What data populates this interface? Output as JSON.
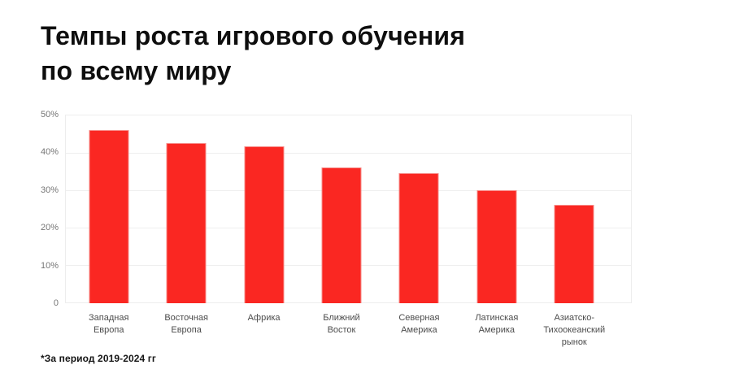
{
  "page": {
    "background": "#ffffff"
  },
  "header": {
    "title_line1": "Темпы роста игрового обучения",
    "title_line2": "по всему миру"
  },
  "chart": {
    "bar_color": "#FA2722",
    "grid_color": "#efefef",
    "axis_tick_color": "#767676",
    "category_label_color": "#4c4c4c"
  },
  "chart_data": {
    "type": "bar",
    "title": "Темпы роста игрового обучения по всему миру",
    "categories": [
      "Западная Европа",
      "Восточная Европа",
      "Африка",
      "Ближний Восток",
      "Северная Америка",
      "Латинская Америка",
      "Азиатско-Тихоокеанский рынок"
    ],
    "category_lines": [
      [
        "Западная",
        "Европа"
      ],
      [
        "Восточная",
        "Европа"
      ],
      [
        "Африка"
      ],
      [
        "Ближний",
        "Восток"
      ],
      [
        "Северная",
        "Америка"
      ],
      [
        "Латинская",
        "Америка"
      ],
      [
        "Азиатско-",
        "Тихоокеанский",
        "рынок"
      ]
    ],
    "values": [
      46,
      42.5,
      41.5,
      36,
      34.5,
      30,
      26
    ],
    "unit": "%",
    "xlabel": "",
    "ylabel": "",
    "ylim": [
      0,
      50
    ],
    "ytick_labels_top_to_bottom": [
      "50%",
      "40%",
      "30%",
      "20%",
      "10%",
      "0"
    ],
    "grid": true,
    "legend": false
  },
  "footnote": "*За период 2019-2024 гг"
}
